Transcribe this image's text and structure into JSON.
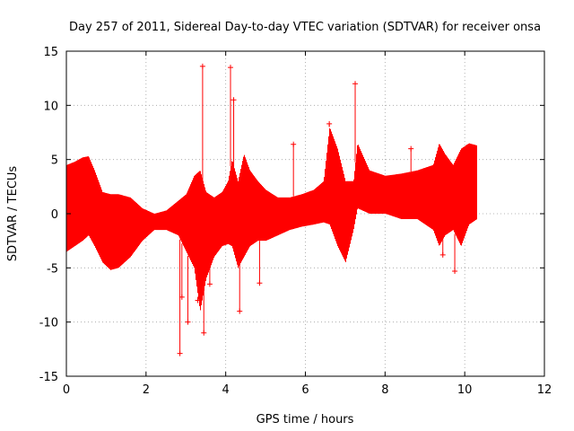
{
  "chart_data": {
    "type": "scatter",
    "title": "Day 257 of 2011, Sidereal Day-to-day VTEC variation (SDTVAR) for receiver onsa",
    "xlabel": "GPS time / hours",
    "ylabel": "SDTVAR / TECUs",
    "xlim": [
      0,
      12
    ],
    "ylim": [
      -15,
      15
    ],
    "xticks": [
      0,
      2,
      4,
      6,
      8,
      10,
      12
    ],
    "yticks": [
      -15,
      -10,
      -5,
      0,
      5,
      10,
      15
    ],
    "xtick_labels": [
      "0",
      "2",
      "4",
      "6",
      "8",
      "10",
      "12"
    ],
    "ytick_labels": [
      "-15",
      "-10",
      "-5",
      "0",
      "5",
      "10",
      "15"
    ],
    "grid": true,
    "marker": "+",
    "color": "#ff0000",
    "series": [
      {
        "name": "SDTVAR",
        "envelope": {
          "x": [
            0.0,
            0.2,
            0.4,
            0.55,
            0.7,
            0.9,
            1.1,
            1.3,
            1.6,
            1.9,
            2.2,
            2.5,
            2.8,
            3.0,
            3.2,
            3.35,
            3.5,
            3.7,
            3.9,
            4.05,
            4.15,
            4.3,
            4.45,
            4.6,
            4.8,
            5.0,
            5.3,
            5.6,
            5.9,
            6.2,
            6.45,
            6.6,
            6.8,
            7.0,
            7.2,
            7.3,
            7.6,
            8.0,
            8.4,
            8.8,
            9.2,
            9.35,
            9.5,
            9.7,
            9.9,
            10.1,
            10.3
          ],
          "upper": [
            4.5,
            4.8,
            5.2,
            5.3,
            4.0,
            2.0,
            1.8,
            1.8,
            1.5,
            0.5,
            0.0,
            0.3,
            1.2,
            1.8,
            3.5,
            4.0,
            2.0,
            1.5,
            2.0,
            3.0,
            5.0,
            3.0,
            5.5,
            4.0,
            3.0,
            2.2,
            1.5,
            1.5,
            1.8,
            2.2,
            3.0,
            8.0,
            6.0,
            3.0,
            3.0,
            6.5,
            4.0,
            3.5,
            3.7,
            4.0,
            4.5,
            6.5,
            5.5,
            4.5,
            6.0,
            6.5,
            6.3
          ],
          "lower": [
            -3.5,
            -3.0,
            -2.5,
            -2.0,
            -3.0,
            -4.5,
            -5.2,
            -5.0,
            -4.0,
            -2.5,
            -1.5,
            -1.5,
            -2.0,
            -3.5,
            -5.0,
            -9.0,
            -6.0,
            -4.0,
            -3.0,
            -2.8,
            -3.0,
            -5.0,
            -4.0,
            -3.0,
            -2.5,
            -2.5,
            -2.0,
            -1.5,
            -1.2,
            -1.0,
            -0.8,
            -1.0,
            -3.0,
            -4.5,
            -1.5,
            0.5,
            0.0,
            0.0,
            -0.5,
            -0.5,
            -1.5,
            -3.0,
            -2.0,
            -1.5,
            -3.0,
            -1.0,
            -0.5
          ]
        },
        "spikes": [
          {
            "x": 2.85,
            "y": -12.9
          },
          {
            "x": 2.9,
            "y": -7.7
          },
          {
            "x": 3.05,
            "y": -10.0
          },
          {
            "x": 3.3,
            "y": -8.0
          },
          {
            "x": 3.42,
            "y": 13.6
          },
          {
            "x": 3.45,
            "y": -11.0
          },
          {
            "x": 3.6,
            "y": -6.5
          },
          {
            "x": 4.12,
            "y": 13.5
          },
          {
            "x": 4.2,
            "y": 10.5
          },
          {
            "x": 4.35,
            "y": -9.0
          },
          {
            "x": 4.85,
            "y": -6.4
          },
          {
            "x": 5.7,
            "y": 6.4
          },
          {
            "x": 6.6,
            "y": 8.3
          },
          {
            "x": 7.25,
            "y": 12.0
          },
          {
            "x": 8.65,
            "y": 6.0
          },
          {
            "x": 9.45,
            "y": -3.8
          },
          {
            "x": 9.75,
            "y": -5.3
          },
          {
            "x": 10.05,
            "y": 5.8
          }
        ]
      }
    ]
  }
}
